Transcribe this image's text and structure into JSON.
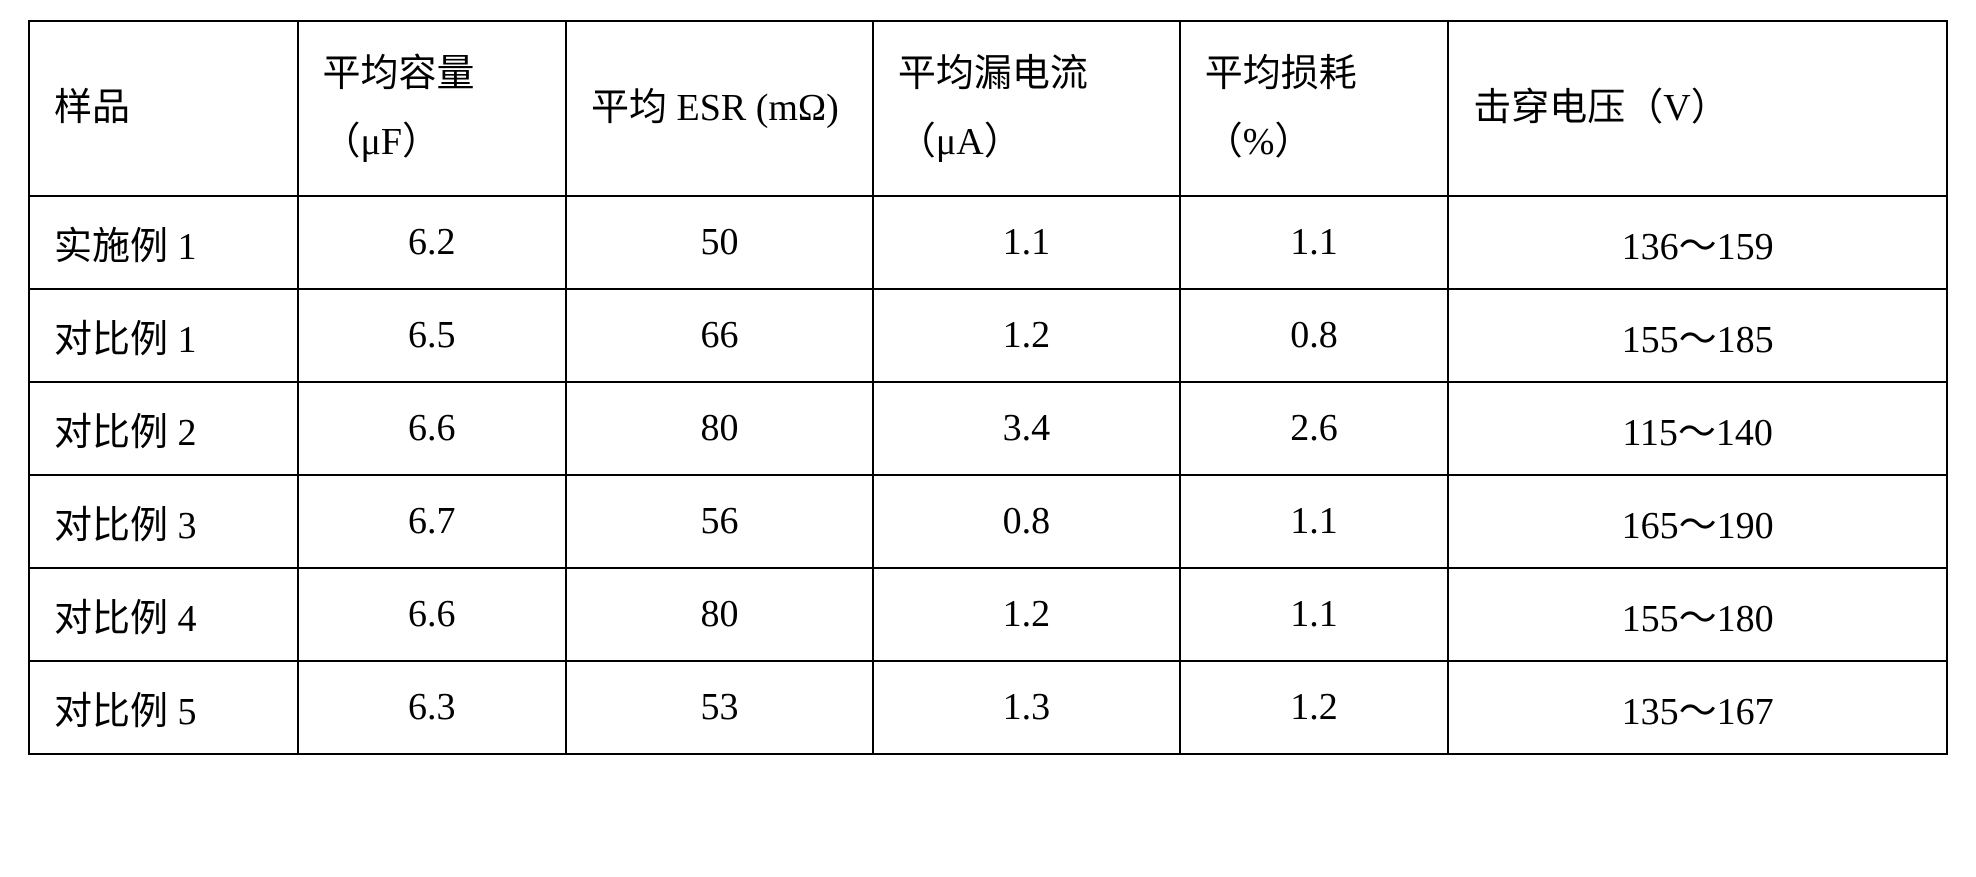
{
  "table": {
    "headers": {
      "sample": "样品",
      "capacity": "平均容量（μF）",
      "esr": "平均 ESR (mΩ)",
      "leakage": "平均漏电流（μA）",
      "loss": "平均损耗（%）",
      "breakdown": "击穿电压（V）"
    },
    "rows": [
      {
        "sample": "实施例 1",
        "capacity": "6.2",
        "esr": "50",
        "leakage": "1.1",
        "loss": "1.1",
        "breakdown": "136～159"
      },
      {
        "sample": "对比例 1",
        "capacity": "6.5",
        "esr": "66",
        "leakage": "1.2",
        "loss": "0.8",
        "breakdown": "155～185"
      },
      {
        "sample": "对比例 2",
        "capacity": "6.6",
        "esr": "80",
        "leakage": "3.4",
        "loss": "2.6",
        "breakdown": "115～140"
      },
      {
        "sample": "对比例 3",
        "capacity": "6.7",
        "esr": "56",
        "leakage": "0.8",
        "loss": "1.1",
        "breakdown": "165～190"
      },
      {
        "sample": "对比例 4",
        "capacity": "6.6",
        "esr": "80",
        "leakage": "1.2",
        "loss": "1.1",
        "breakdown": "155～180"
      },
      {
        "sample": "对比例 5",
        "capacity": "6.3",
        "esr": "53",
        "leakage": "1.3",
        "loss": "1.2",
        "breakdown": "135～167"
      }
    ],
    "styling": {
      "border_color": "#000000",
      "border_width": 2,
      "background_color": "#ffffff",
      "text_color": "#000000",
      "font_size": 38,
      "font_family": "SimSun",
      "cell_padding": "18px 24px",
      "header_text_align": "left",
      "sample_col_align": "left",
      "data_col_align": "center",
      "column_widths": [
        "14%",
        "14%",
        "16%",
        "16%",
        "14%",
        "26%"
      ]
    }
  }
}
